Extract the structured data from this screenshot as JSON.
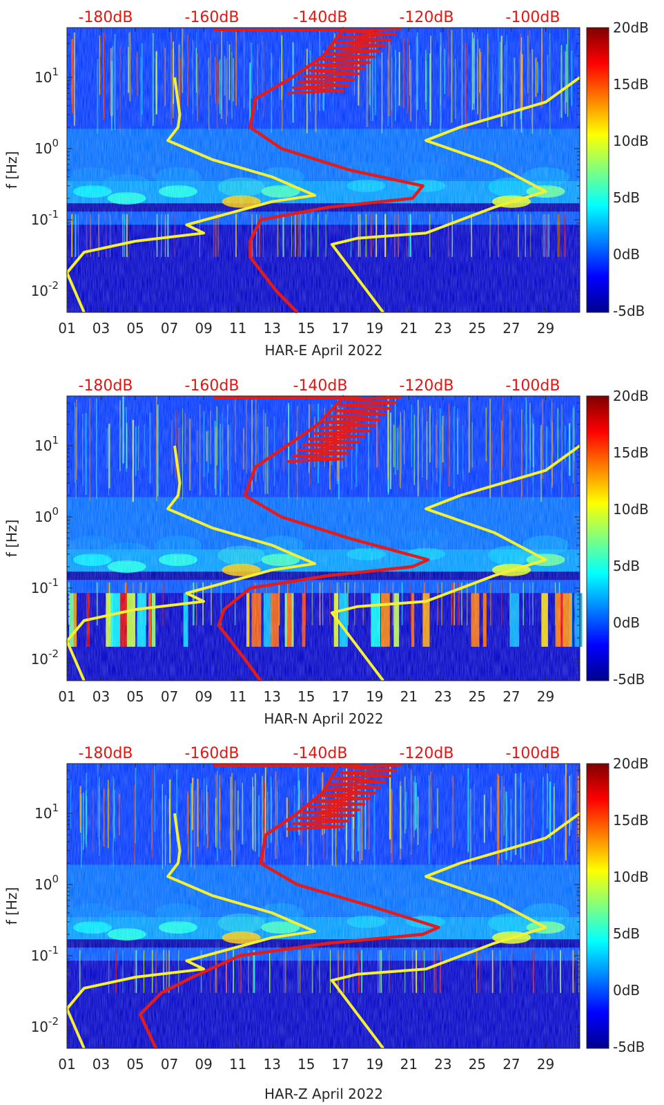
{
  "chart_data": [
    {
      "type": "heatmap",
      "xlabel": "HAR-E April 2022",
      "ylabel": "f [Hz]",
      "x_ticks": [
        "01",
        "03",
        "05",
        "07",
        "09",
        "11",
        "13",
        "15",
        "17",
        "19",
        "21",
        "23",
        "25",
        "27",
        "29"
      ],
      "y_ticks": [
        {
          "base": "10",
          "exp": "-2",
          "value": 0.01
        },
        {
          "base": "10",
          "exp": "-1",
          "value": 0.1
        },
        {
          "base": "10",
          "exp": "0",
          "value": 1
        },
        {
          "base": "10",
          "exp": "1",
          "value": 10
        }
      ],
      "top_ticks": [
        "-180dB",
        "-160dB",
        "-140dB",
        "-120dB",
        "-100dB"
      ],
      "colorbar_ticks": [
        "20dB",
        "15dB",
        "10dB",
        "5dB",
        "0dB",
        "-5dB"
      ],
      "colorbar_range": [
        -5,
        20
      ],
      "xlim": [
        1,
        31
      ],
      "ylim": [
        0.005,
        50
      ],
      "yscale": "log",
      "top_axis_range_dB": [
        -190,
        -92
      ],
      "red_curve": {
        "db_at_freq": [
          [
            50,
            -137
          ],
          [
            20,
            -141
          ],
          [
            10,
            -147
          ],
          [
            5,
            -154
          ],
          [
            2,
            -155
          ],
          [
            1,
            -149
          ],
          [
            0.5,
            -136
          ],
          [
            0.3,
            -122
          ],
          [
            0.2,
            -124
          ],
          [
            0.15,
            -140
          ],
          [
            0.1,
            -153
          ],
          [
            0.05,
            -155
          ],
          [
            0.03,
            -155
          ],
          [
            0.01,
            -150
          ],
          [
            0.005,
            -146
          ]
        ]
      },
      "yellow_curves": [
        {
          "points": [
            [
              7.3,
              10
            ],
            [
              7.6,
              3
            ],
            [
              7.5,
              2
            ],
            [
              6.9,
              1.3
            ],
            [
              9.5,
              0.7
            ],
            [
              13,
              0.4
            ],
            [
              15.5,
              0.22
            ],
            [
              13,
              0.18
            ],
            [
              8,
              0.085
            ],
            [
              9,
              0.065
            ],
            [
              5,
              0.05
            ],
            [
              2,
              0.035
            ],
            [
              1,
              0.018
            ],
            [
              2,
              0.005
            ]
          ]
        },
        {
          "points": [
            [
              31,
              10
            ],
            [
              29,
              4.5
            ],
            [
              24,
              2
            ],
            [
              22,
              1.3
            ],
            [
              26,
              0.6
            ],
            [
              29,
              0.25
            ],
            [
              26,
              0.15
            ],
            [
              22,
              0.065
            ],
            [
              18,
              0.055
            ],
            [
              16.5,
              0.045
            ],
            [
              19.5,
              0.005
            ]
          ]
        }
      ],
      "spec": {
        "low_band": 0,
        "tick_gap": 0
      }
    },
    {
      "type": "heatmap",
      "xlabel": "HAR-N April 2022",
      "ylabel": "f [Hz]",
      "x_ticks": [
        "01",
        "03",
        "05",
        "07",
        "09",
        "11",
        "13",
        "15",
        "17",
        "19",
        "21",
        "23",
        "25",
        "27",
        "29"
      ],
      "y_ticks": [
        {
          "base": "10",
          "exp": "-2",
          "value": 0.01
        },
        {
          "base": "10",
          "exp": "-1",
          "value": 0.1
        },
        {
          "base": "10",
          "exp": "0",
          "value": 1
        },
        {
          "base": "10",
          "exp": "1",
          "value": 10
        }
      ],
      "top_ticks": [
        "-180dB",
        "-160dB",
        "-140dB",
        "-120dB",
        "-100dB"
      ],
      "colorbar_ticks": [
        "20dB",
        "15dB",
        "10dB",
        "5dB",
        "0dB",
        "-5dB"
      ],
      "colorbar_range": [
        -5,
        20
      ],
      "xlim": [
        1,
        31
      ],
      "ylim": [
        0.005,
        50
      ],
      "yscale": "log",
      "top_axis_range_dB": [
        -190,
        -92
      ],
      "red_curve": {
        "db_at_freq": [
          [
            50,
            -137
          ],
          [
            20,
            -142
          ],
          [
            10,
            -148
          ],
          [
            5,
            -154
          ],
          [
            2,
            -156
          ],
          [
            1,
            -149
          ],
          [
            0.5,
            -136
          ],
          [
            0.25,
            -121
          ],
          [
            0.2,
            -124
          ],
          [
            0.15,
            -140
          ],
          [
            0.1,
            -155
          ],
          [
            0.05,
            -160
          ],
          [
            0.03,
            -161
          ],
          [
            0.01,
            -156
          ],
          [
            0.005,
            -153
          ]
        ]
      },
      "yellow_curves": [
        {
          "points": [
            [
              7.3,
              10
            ],
            [
              7.6,
              3
            ],
            [
              7.5,
              2
            ],
            [
              6.9,
              1.3
            ],
            [
              9.5,
              0.7
            ],
            [
              13,
              0.4
            ],
            [
              15.5,
              0.22
            ],
            [
              13,
              0.18
            ],
            [
              8,
              0.085
            ],
            [
              9,
              0.065
            ],
            [
              5,
              0.05
            ],
            [
              2,
              0.035
            ],
            [
              1,
              0.018
            ],
            [
              2,
              0.005
            ]
          ]
        },
        {
          "points": [
            [
              31,
              10
            ],
            [
              29,
              4.5
            ],
            [
              24,
              2
            ],
            [
              22,
              1.3
            ],
            [
              26,
              0.6
            ],
            [
              29,
              0.25
            ],
            [
              26,
              0.15
            ],
            [
              22,
              0.065
            ],
            [
              18,
              0.055
            ],
            [
              16.5,
              0.045
            ],
            [
              19.5,
              0.005
            ]
          ]
        }
      ],
      "spec": {
        "low_band": 1,
        "tick_gap": 0
      }
    },
    {
      "type": "heatmap",
      "xlabel": "HAR-Z April 2022",
      "ylabel": "f [Hz]",
      "x_ticks": [
        "01",
        "03",
        "05",
        "07",
        "09",
        "11",
        "13",
        "15",
        "17",
        "19",
        "21",
        "23",
        "25",
        "27",
        "29"
      ],
      "y_ticks": [
        {
          "base": "10",
          "exp": "-2",
          "value": 0.01
        },
        {
          "base": "10",
          "exp": "-1",
          "value": 0.1
        },
        {
          "base": "10",
          "exp": "0",
          "value": 1
        },
        {
          "base": "10",
          "exp": "1",
          "value": 10
        }
      ],
      "top_ticks": [
        "-180dB",
        "-160dB",
        "-140dB",
        "-120dB",
        "-100dB"
      ],
      "colorbar_ticks": [
        "20dB",
        "15dB",
        "10dB",
        "5dB",
        "0dB",
        "-5dB"
      ],
      "colorbar_range": [
        -5,
        20
      ],
      "xlim": [
        1,
        31
      ],
      "ylim": [
        0.005,
        50
      ],
      "yscale": "log",
      "top_axis_range_dB": [
        -190,
        -92
      ],
      "red_curve": {
        "db_at_freq": [
          [
            50,
            -138
          ],
          [
            20,
            -141
          ],
          [
            10,
            -146
          ],
          [
            5,
            -152
          ],
          [
            2,
            -153
          ],
          [
            1,
            -146
          ],
          [
            0.5,
            -132
          ],
          [
            0.25,
            -119
          ],
          [
            0.2,
            -122
          ],
          [
            0.15,
            -140
          ],
          [
            0.1,
            -157
          ],
          [
            0.05,
            -166
          ],
          [
            0.03,
            -172
          ],
          [
            0.015,
            -176
          ],
          [
            0.005,
            -173
          ]
        ]
      },
      "yellow_curves": [
        {
          "points": [
            [
              7.3,
              10
            ],
            [
              7.6,
              3
            ],
            [
              7.5,
              2
            ],
            [
              6.9,
              1.3
            ],
            [
              9.5,
              0.7
            ],
            [
              13,
              0.4
            ],
            [
              15.5,
              0.22
            ],
            [
              13,
              0.18
            ],
            [
              8,
              0.085
            ],
            [
              9,
              0.065
            ],
            [
              5,
              0.05
            ],
            [
              2,
              0.035
            ],
            [
              1,
              0.018
            ],
            [
              2,
              0.005
            ]
          ]
        },
        {
          "points": [
            [
              31,
              10
            ],
            [
              29,
              4.5
            ],
            [
              24,
              2
            ],
            [
              22,
              1.3
            ],
            [
              26,
              0.6
            ],
            [
              29,
              0.25
            ],
            [
              26,
              0.15
            ],
            [
              22,
              0.065
            ],
            [
              18,
              0.055
            ],
            [
              16.5,
              0.045
            ],
            [
              19.5,
              0.005
            ]
          ]
        }
      ],
      "spec": {
        "low_band": 0,
        "tick_gap": 1
      }
    }
  ]
}
